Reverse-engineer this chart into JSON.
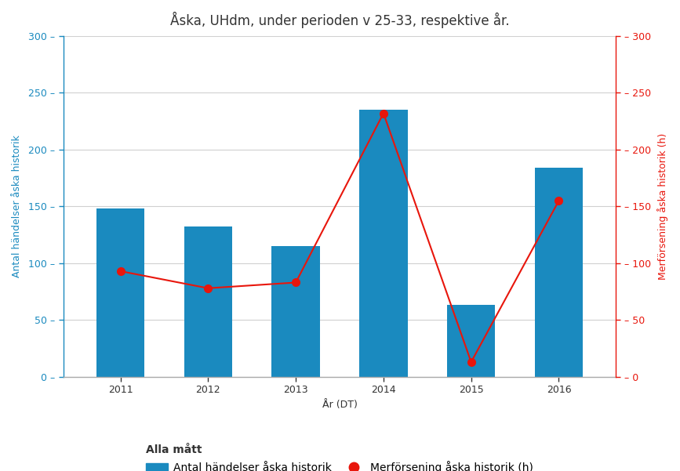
{
  "title": "Åska, UHdm, under perioden v 25-33, respektive år.",
  "xlabel": "År (DT)",
  "ylabel_left": "Antal händelser åska historik",
  "ylabel_right": "Merförsening åska historik (h)",
  "years": [
    2011,
    2012,
    2013,
    2014,
    2015,
    2016
  ],
  "bar_values": [
    148,
    132,
    115,
    235,
    63,
    184
  ],
  "line_values": [
    93,
    78,
    83,
    232,
    13,
    155
  ],
  "bar_color": "#1a8abf",
  "line_color": "#e8160c",
  "ylim_left": [
    0,
    300
  ],
  "ylim_right": [
    0,
    300
  ],
  "yticks_left": [
    0,
    50,
    100,
    150,
    200,
    250,
    300
  ],
  "yticks_right": [
    0,
    50,
    100,
    150,
    200,
    250,
    300
  ],
  "legend_label_bar": "Antal händelser åska historik",
  "legend_label_line": "Merförsening åska historik (h)",
  "legend_title": "Alla mått",
  "background_color": "#ffffff",
  "plot_bg_color": "#ffffff",
  "title_fontsize": 12,
  "axis_label_fontsize": 9,
  "tick_fontsize": 9,
  "legend_fontsize": 10,
  "bar_width": 0.55,
  "left_tick_color": "#1a8abf",
  "right_tick_color": "#e8160c",
  "grid_color": "#d0d0d0"
}
